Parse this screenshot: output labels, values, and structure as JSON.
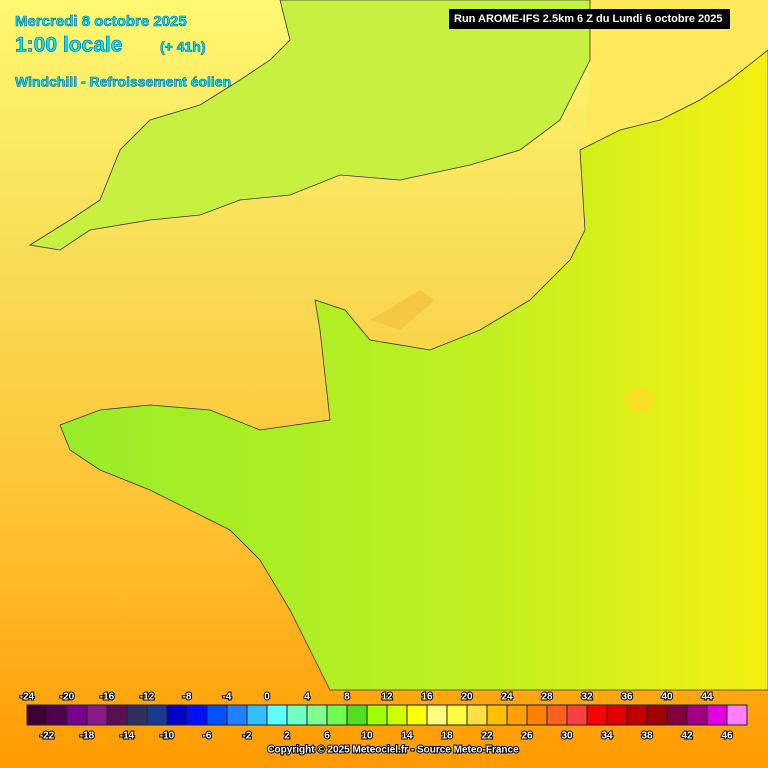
{
  "header": {
    "date": "Mercredi 8 octobre 2025",
    "time": "1:00 locale",
    "lead": "(+ 41h)",
    "parameter": "Windchill - Refroissement éolien"
  },
  "run": "Run AROME-IFS 2.5km 6 Z du Lundi 6 octobre 2025",
  "legend": {
    "labels_top": [
      "-24",
      "-20",
      "-16",
      "-12",
      "-8",
      "-4",
      "0",
      "4",
      "8",
      "12",
      "16",
      "20",
      "24",
      "28",
      "32",
      "36",
      "40",
      "44"
    ],
    "labels_bottom": [
      "-22",
      "-18",
      "-14",
      "-10",
      "-6",
      "-2",
      "2",
      "6",
      "10",
      "14",
      "18",
      "22",
      "26",
      "30",
      "34",
      "38",
      "42",
      "46"
    ],
    "colors": [
      "#3c0032",
      "#500050",
      "#780090",
      "#8a1a8a",
      "#5a1050",
      "#303060",
      "#1a3a90",
      "#0000c8",
      "#0010ff",
      "#0050ff",
      "#2080ff",
      "#30c0ff",
      "#60ffff",
      "#70ffc0",
      "#80ff90",
      "#70ff50",
      "#50e020",
      "#a0ff00",
      "#d0ff00",
      "#ffff00",
      "#ffff80",
      "#ffff40",
      "#ffe040",
      "#ffc000",
      "#ffa000",
      "#ff8000",
      "#ff6020",
      "#ff4040",
      "#ff0000",
      "#e00000",
      "#c00000",
      "#a00000",
      "#800040",
      "#a00080",
      "#e000e0",
      "#ff80ff"
    ]
  },
  "copyright": "Copyright © 2025 Meteociel.fr - Source Meteo-France"
}
